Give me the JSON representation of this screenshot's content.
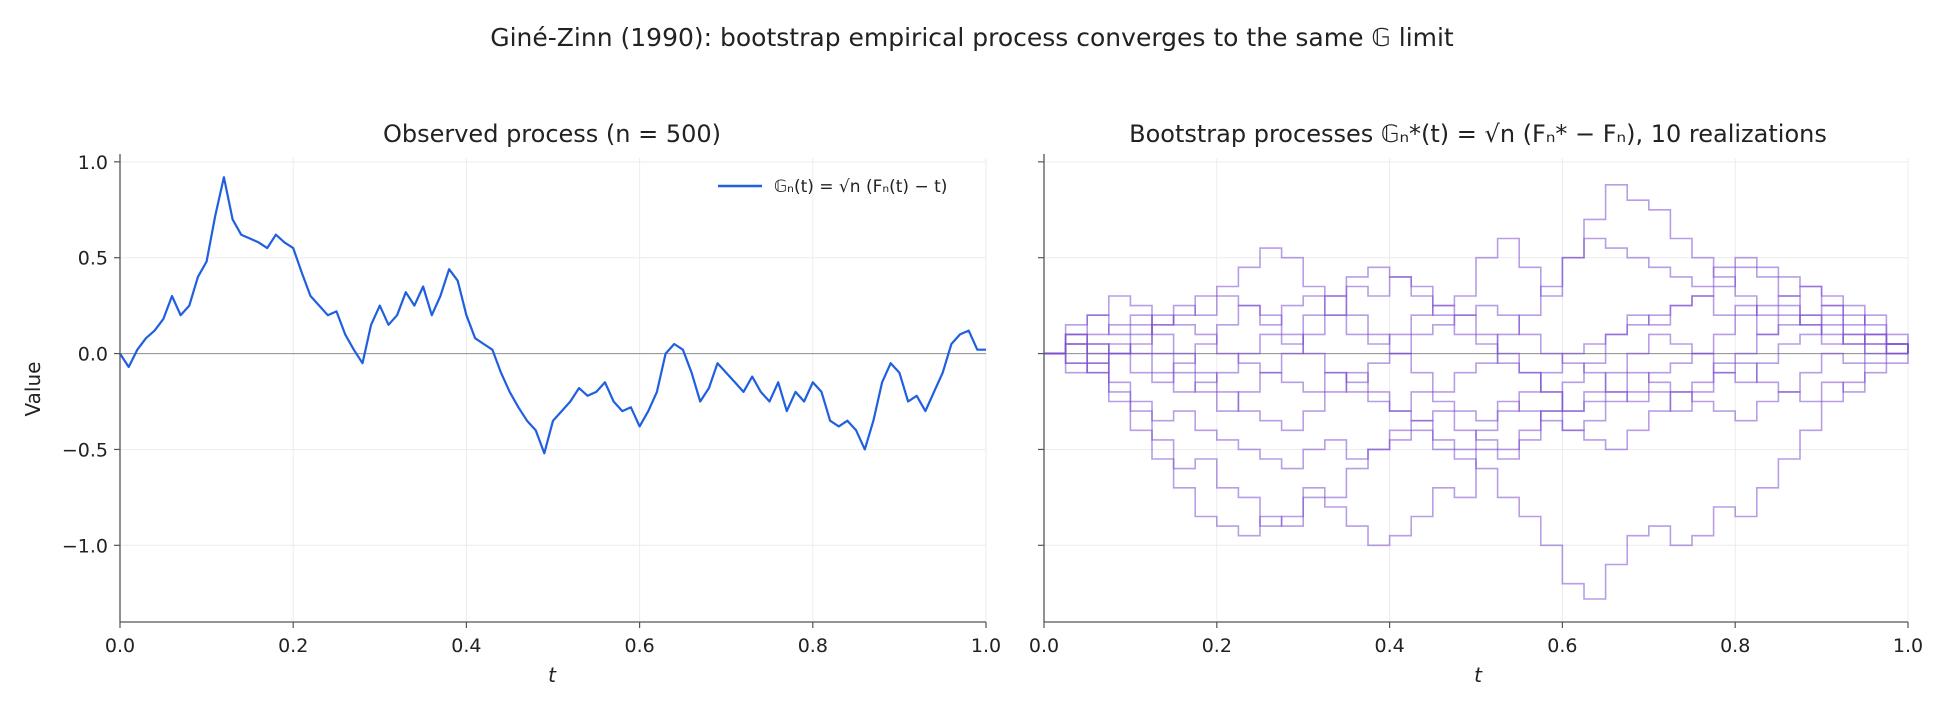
{
  "suptitle": "Giné-Zinn (1990): bootstrap empirical process converges to the same 𝔾 limit",
  "chart_data": [
    {
      "type": "line",
      "title": "Observed process (n = 500)",
      "xlabel": "t",
      "ylabel": "Value",
      "xlim": [
        0.0,
        1.0
      ],
      "ylim": [
        -1.4,
        1.02
      ],
      "xticks": [
        "0.0",
        "0.2",
        "0.4",
        "0.6",
        "0.8",
        "1.0"
      ],
      "yticks": [
        "1.0",
        "0.5",
        "0.0",
        "−0.5",
        "−1.0"
      ],
      "grid": true,
      "legend_position": "upper-right",
      "series": [
        {
          "name": "𝔾ₙ(t) = √n (Fₙ(t) − t)",
          "color": "#1f5fe0",
          "x": [
            0,
            0.01,
            0.02,
            0.03,
            0.04,
            0.05,
            0.06,
            0.07,
            0.08,
            0.09,
            0.1,
            0.11,
            0.12,
            0.13,
            0.14,
            0.15,
            0.16,
            0.17,
            0.18,
            0.19,
            0.2,
            0.21,
            0.22,
            0.23,
            0.24,
            0.25,
            0.26,
            0.27,
            0.28,
            0.29,
            0.3,
            0.31,
            0.32,
            0.33,
            0.34,
            0.35,
            0.36,
            0.37,
            0.38,
            0.39,
            0.4,
            0.41,
            0.42,
            0.43,
            0.44,
            0.45,
            0.46,
            0.47,
            0.48,
            0.49,
            0.5,
            0.51,
            0.52,
            0.53,
            0.54,
            0.55,
            0.56,
            0.57,
            0.58,
            0.59,
            0.6,
            0.61,
            0.62,
            0.63,
            0.64,
            0.65,
            0.66,
            0.67,
            0.68,
            0.69,
            0.7,
            0.71,
            0.72,
            0.73,
            0.74,
            0.75,
            0.76,
            0.77,
            0.78,
            0.79,
            0.8,
            0.81,
            0.82,
            0.83,
            0.84,
            0.85,
            0.86,
            0.87,
            0.88,
            0.89,
            0.9,
            0.91,
            0.92,
            0.93,
            0.94,
            0.95,
            0.96,
            0.97,
            0.98,
            0.99,
            1.0
          ],
          "y": [
            0.0,
            -0.07,
            0.02,
            0.08,
            0.12,
            0.18,
            0.3,
            0.2,
            0.25,
            0.4,
            0.48,
            0.72,
            0.92,
            0.7,
            0.62,
            0.6,
            0.58,
            0.55,
            0.62,
            0.58,
            0.55,
            0.42,
            0.3,
            0.25,
            0.2,
            0.22,
            0.1,
            0.02,
            -0.05,
            0.15,
            0.25,
            0.15,
            0.2,
            0.32,
            0.25,
            0.35,
            0.2,
            0.3,
            0.44,
            0.38,
            0.2,
            0.08,
            0.05,
            0.02,
            -0.1,
            -0.2,
            -0.28,
            -0.35,
            -0.4,
            -0.52,
            -0.35,
            -0.3,
            -0.25,
            -0.18,
            -0.22,
            -0.2,
            -0.15,
            -0.25,
            -0.3,
            -0.28,
            -0.38,
            -0.3,
            -0.2,
            0.0,
            0.05,
            0.02,
            -0.1,
            -0.25,
            -0.18,
            -0.05,
            -0.1,
            -0.15,
            -0.2,
            -0.12,
            -0.2,
            -0.25,
            -0.15,
            -0.3,
            -0.2,
            -0.25,
            -0.15,
            -0.2,
            -0.35,
            -0.38,
            -0.35,
            -0.4,
            -0.5,
            -0.35,
            -0.15,
            -0.05,
            -0.1,
            -0.25,
            -0.22,
            -0.3,
            -0.2,
            -0.1,
            0.05,
            0.1,
            0.12,
            0.02,
            0.02
          ]
        }
      ]
    },
    {
      "type": "line",
      "title": "Bootstrap processes 𝔾ₙ*(t) = √n (Fₙ* − Fₙ), 10 realizations",
      "xlabel": "t",
      "ylabel": "",
      "xlim": [
        0.0,
        1.0
      ],
      "ylim": [
        -1.4,
        1.02
      ],
      "xticks": [
        "0.0",
        "0.2",
        "0.4",
        "0.6",
        "0.8",
        "1.0"
      ],
      "grid": true,
      "line_color": "#7b4fcf",
      "x": [
        0,
        0.025,
        0.05,
        0.075,
        0.1,
        0.125,
        0.15,
        0.175,
        0.2,
        0.225,
        0.25,
        0.275,
        0.3,
        0.325,
        0.35,
        0.375,
        0.4,
        0.425,
        0.45,
        0.475,
        0.5,
        0.525,
        0.55,
        0.575,
        0.6,
        0.625,
        0.65,
        0.675,
        0.7,
        0.725,
        0.75,
        0.775,
        0.8,
        0.825,
        0.85,
        0.875,
        0.9,
        0.925,
        0.95,
        0.975,
        1.0
      ],
      "series": [
        {
          "values": [
            0,
            0.1,
            0.0,
            -0.2,
            -0.4,
            -0.55,
            -0.7,
            -0.85,
            -0.9,
            -0.95,
            -0.85,
            -0.9,
            -0.75,
            -0.8,
            -0.9,
            -1.0,
            -0.95,
            -0.85,
            -0.7,
            -0.75,
            -0.5,
            -0.55,
            -0.45,
            -0.3,
            -0.15,
            -0.05,
            0.1,
            0.15,
            0.2,
            0.25,
            0.3,
            0.2,
            0.25,
            0.1,
            0.2,
            0.15,
            0.05,
            0.1,
            0.0,
            0.05,
            0
          ]
        },
        {
          "values": [
            0,
            0.05,
            -0.1,
            -0.25,
            -0.3,
            -0.45,
            -0.6,
            -0.55,
            -0.7,
            -0.75,
            -0.9,
            -0.85,
            -0.7,
            -0.75,
            -0.6,
            -0.5,
            -0.45,
            -0.4,
            -0.5,
            -0.55,
            -0.6,
            -0.75,
            -0.85,
            -1.0,
            -1.2,
            -1.28,
            -1.1,
            -0.95,
            -0.9,
            -1.0,
            -0.95,
            -0.8,
            -0.85,
            -0.7,
            -0.55,
            -0.4,
            -0.25,
            -0.15,
            -0.05,
            0.0,
            0
          ]
        },
        {
          "values": [
            0,
            0.15,
            0.2,
            0.1,
            0.15,
            0.0,
            -0.1,
            -0.2,
            -0.3,
            -0.2,
            -0.1,
            0.0,
            0.1,
            0.2,
            0.35,
            0.3,
            0.4,
            0.35,
            0.25,
            0.3,
            0.5,
            0.6,
            0.45,
            0.3,
            0.5,
            0.7,
            0.88,
            0.8,
            0.75,
            0.6,
            0.5,
            0.4,
            0.3,
            0.2,
            0.25,
            0.15,
            0.2,
            0.1,
            0.05,
            0.0,
            0
          ]
        },
        {
          "values": [
            0,
            0.1,
            0.2,
            0.3,
            0.25,
            0.15,
            0.2,
            0.3,
            0.35,
            0.45,
            0.55,
            0.5,
            0.35,
            0.3,
            0.2,
            0.1,
            0.0,
            -0.1,
            -0.2,
            -0.1,
            -0.05,
            0.1,
            0.2,
            0.35,
            0.5,
            0.6,
            0.55,
            0.5,
            0.45,
            0.4,
            0.35,
            0.45,
            0.5,
            0.45,
            0.4,
            0.35,
            0.3,
            0.25,
            0.15,
            0.05,
            0
          ]
        },
        {
          "values": [
            0,
            -0.1,
            -0.05,
            0.05,
            0.0,
            -0.1,
            -0.2,
            -0.15,
            -0.1,
            0.0,
            0.1,
            0.05,
            0.2,
            0.3,
            0.4,
            0.45,
            0.4,
            0.3,
            0.2,
            0.1,
            0.05,
            -0.05,
            -0.1,
            -0.2,
            -0.3,
            -0.2,
            -0.1,
            0.0,
            0.1,
            0.05,
            0.0,
            -0.1,
            -0.15,
            -0.05,
            0.05,
            0.1,
            0.15,
            0.05,
            0.1,
            0.05,
            0
          ]
        },
        {
          "values": [
            0,
            0.05,
            0.1,
            0.15,
            0.2,
            0.1,
            0.0,
            -0.1,
            -0.2,
            -0.3,
            -0.35,
            -0.4,
            -0.3,
            -0.2,
            -0.1,
            -0.2,
            -0.3,
            -0.35,
            -0.3,
            -0.4,
            -0.45,
            -0.5,
            -0.4,
            -0.3,
            -0.4,
            -0.35,
            -0.25,
            -0.2,
            -0.1,
            -0.05,
            0.0,
            0.1,
            0.2,
            0.25,
            0.3,
            0.2,
            0.1,
            0.05,
            0.1,
            0.05,
            0
          ]
        },
        {
          "values": [
            0,
            -0.05,
            0.05,
            0.0,
            0.1,
            0.2,
            0.15,
            0.1,
            0.0,
            -0.05,
            -0.1,
            -0.15,
            -0.2,
            -0.1,
            -0.15,
            -0.05,
            0.0,
            0.1,
            0.15,
            0.2,
            0.25,
            0.2,
            0.1,
            0.0,
            -0.05,
            -0.1,
            -0.2,
            -0.25,
            -0.2,
            -0.3,
            -0.2,
            -0.1,
            -0.05,
            -0.15,
            -0.2,
            -0.1,
            0.0,
            -0.05,
            0.05,
            0.0,
            0
          ]
        },
        {
          "values": [
            0,
            0.1,
            0.05,
            0.0,
            -0.1,
            -0.15,
            -0.05,
            0.05,
            0.15,
            0.25,
            0.2,
            0.1,
            0.0,
            -0.1,
            -0.2,
            -0.25,
            -0.3,
            -0.2,
            -0.25,
            -0.3,
            -0.35,
            -0.25,
            -0.3,
            -0.35,
            -0.4,
            -0.45,
            -0.5,
            -0.4,
            -0.3,
            -0.2,
            -0.15,
            -0.05,
            0.0,
            0.1,
            0.15,
            0.2,
            0.25,
            0.15,
            0.2,
            0.1,
            0
          ]
        },
        {
          "values": [
            0,
            -0.05,
            -0.1,
            0.0,
            0.05,
            0.15,
            0.25,
            0.2,
            0.3,
            0.25,
            0.15,
            0.25,
            0.3,
            0.2,
            0.1,
            0.05,
            0.1,
            0.2,
            0.25,
            0.2,
            0.1,
            0.0,
            -0.1,
            -0.2,
            -0.3,
            -0.25,
            -0.2,
            -0.1,
            -0.15,
            -0.2,
            -0.25,
            -0.3,
            -0.35,
            -0.25,
            -0.2,
            -0.25,
            -0.15,
            -0.2,
            -0.1,
            -0.05,
            0
          ]
        },
        {
          "values": [
            0,
            0.05,
            -0.05,
            -0.15,
            -0.25,
            -0.35,
            -0.3,
            -0.4,
            -0.45,
            -0.5,
            -0.55,
            -0.6,
            -0.5,
            -0.45,
            -0.55,
            -0.5,
            -0.4,
            -0.35,
            -0.45,
            -0.5,
            -0.4,
            -0.3,
            -0.2,
            -0.1,
            0.0,
            0.05,
            0.1,
            0.2,
            0.15,
            0.25,
            0.3,
            0.35,
            0.45,
            0.4,
            0.3,
            0.35,
            0.25,
            0.2,
            0.1,
            0.05,
            0
          ]
        }
      ]
    }
  ]
}
